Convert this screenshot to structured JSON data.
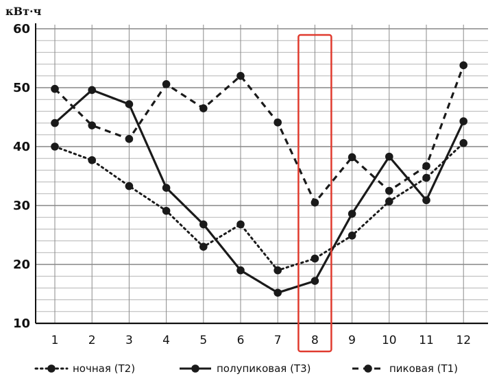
{
  "chart_data": {
    "type": "line",
    "ylabel": "кВт·ч",
    "categories": [
      "1",
      "2",
      "3",
      "4",
      "5",
      "6",
      "7",
      "8",
      "9",
      "10",
      "11",
      "12"
    ],
    "yticks": [
      10,
      20,
      30,
      40,
      50,
      60
    ],
    "ylim": [
      10,
      60
    ],
    "grid": true,
    "legend_position": "bottom",
    "highlight_category": "8",
    "highlight_color": "#e03a2e",
    "series": [
      {
        "name": "ночная (Т2)",
        "style": "dotted",
        "color": "#1a1a1a",
        "values": [
          40,
          37.7,
          33.3,
          29.1,
          23,
          26.8,
          19,
          21,
          24.9,
          30.7,
          34.7,
          40.6
        ]
      },
      {
        "name": "полупиковая (Т3)",
        "style": "solid",
        "color": "#1a1a1a",
        "values": [
          44,
          49.6,
          47.2,
          33,
          26.8,
          19,
          15.2,
          17.2,
          28.6,
          38.3,
          30.9,
          44.3
        ]
      },
      {
        "name": "пиковая (Т1)",
        "style": "dashed",
        "color": "#1a1a1a",
        "values": [
          49.8,
          43.6,
          41.3,
          50.6,
          46.5,
          52,
          44.1,
          30.5,
          38.2,
          32.5,
          36.7,
          53.8
        ]
      }
    ]
  }
}
